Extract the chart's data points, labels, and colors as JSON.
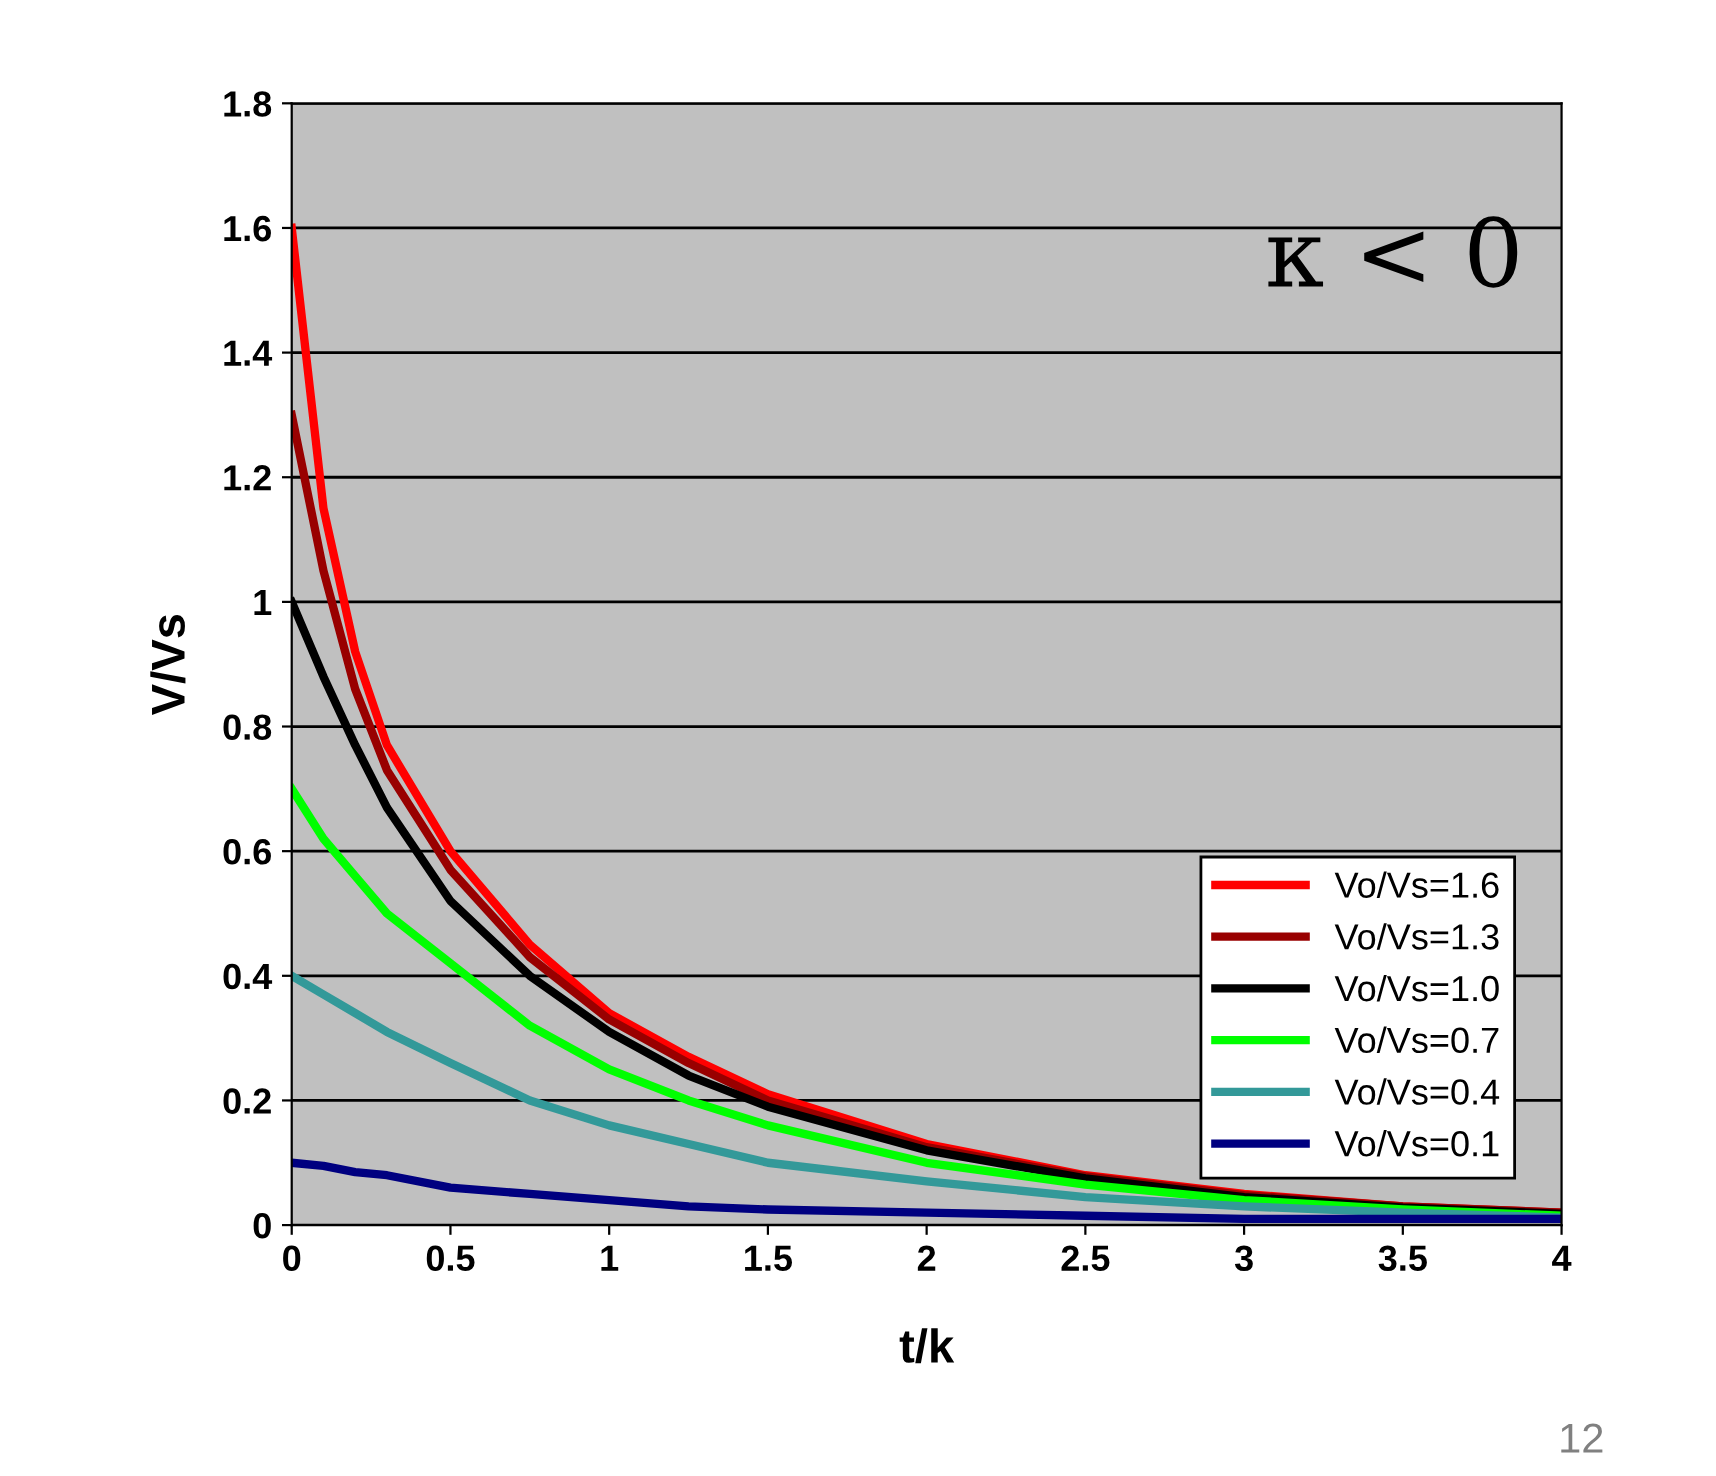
{
  "chart_data": {
    "type": "line",
    "xlabel": "t/k",
    "ylabel": "V/Vs",
    "x": [
      0,
      0.1,
      0.2,
      0.3,
      0.5,
      0.75,
      1,
      1.25,
      1.5,
      2,
      2.5,
      3,
      3.5,
      4
    ],
    "series": [
      {
        "name": "Vo/Vs=1.6",
        "color": "#ff0000",
        "values": [
          1.6,
          1.15,
          0.92,
          0.77,
          0.6,
          0.45,
          0.34,
          0.27,
          0.21,
          0.13,
          0.08,
          0.05,
          0.03,
          0.02
        ]
      },
      {
        "name": "Vo/Vs=1.3",
        "color": "#990000",
        "values": [
          1.3,
          1.05,
          0.86,
          0.73,
          0.57,
          0.43,
          0.33,
          0.26,
          0.2,
          0.125,
          0.078,
          0.048,
          0.03,
          0.02
        ]
      },
      {
        "name": "Vo/Vs=1.0",
        "color": "#000000",
        "values": [
          1.0,
          0.88,
          0.77,
          0.67,
          0.52,
          0.4,
          0.31,
          0.24,
          0.19,
          0.12,
          0.075,
          0.045,
          0.028,
          0.018
        ]
      },
      {
        "name": "Vo/Vs=0.7",
        "color": "#00ff00",
        "values": [
          0.7,
          0.62,
          0.56,
          0.5,
          0.42,
          0.32,
          0.25,
          0.2,
          0.16,
          0.1,
          0.065,
          0.04,
          0.025,
          0.015
        ]
      },
      {
        "name": "Vo/Vs=0.4",
        "color": "#339999",
        "values": [
          0.4,
          0.37,
          0.34,
          0.31,
          0.26,
          0.2,
          0.16,
          0.13,
          0.1,
          0.07,
          0.045,
          0.03,
          0.02,
          0.012
        ]
      },
      {
        "name": "Vo/Vs=0.1",
        "color": "#000080",
        "values": [
          0.1,
          0.095,
          0.085,
          0.08,
          0.06,
          0.05,
          0.04,
          0.03,
          0.025,
          0.02,
          0.015,
          0.01,
          0.01,
          0.01
        ]
      }
    ],
    "xlim": [
      0,
      4
    ],
    "xticks": [
      0,
      0.5,
      1,
      1.5,
      2,
      2.5,
      3,
      3.5,
      4
    ],
    "ylim": [
      0,
      1.8
    ],
    "yticks": [
      0,
      0.2,
      0.4,
      0.6,
      0.8,
      1,
      1.2,
      1.4,
      1.6,
      1.8
    ],
    "grid": "y",
    "legend": "bottom right",
    "marker": "none",
    "line_style": "solid",
    "annotations": [
      "κ < 0",
      "12"
    ]
  }
}
